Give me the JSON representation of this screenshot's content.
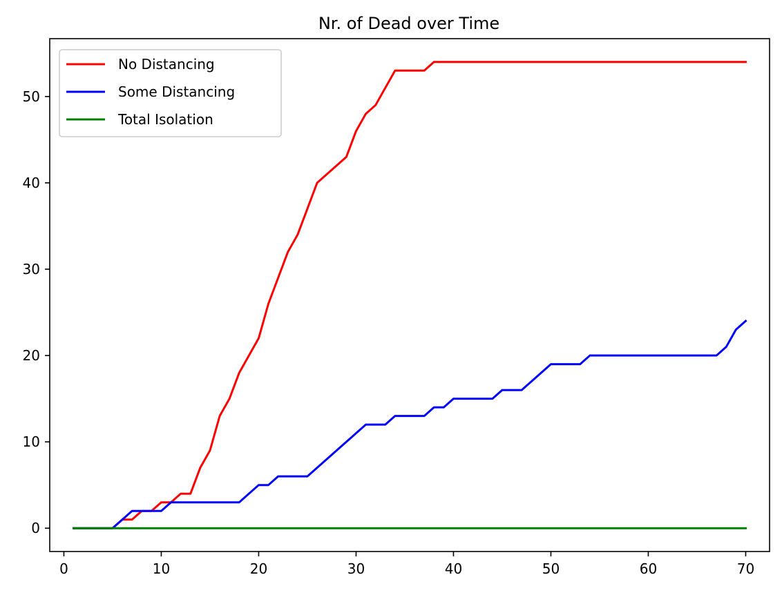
{
  "chart_data": {
    "type": "line",
    "title": "Nr. of Dead over Time",
    "xlabel": "",
    "ylabel": "",
    "xlim": [
      -1.45,
      72.45
    ],
    "ylim": [
      -2.7,
      56.7
    ],
    "xticks": [
      0,
      10,
      20,
      30,
      40,
      50,
      60,
      70
    ],
    "yticks": [
      0,
      10,
      20,
      30,
      40,
      50
    ],
    "grid": false,
    "legend_position": "top-left",
    "x": [
      1,
      2,
      3,
      4,
      5,
      6,
      7,
      8,
      9,
      10,
      11,
      12,
      13,
      14,
      15,
      16,
      17,
      18,
      19,
      20,
      21,
      22,
      23,
      24,
      25,
      26,
      27,
      28,
      29,
      30,
      31,
      32,
      33,
      34,
      35,
      36,
      37,
      38,
      39,
      40,
      41,
      42,
      43,
      44,
      45,
      46,
      47,
      48,
      49,
      50,
      51,
      52,
      53,
      54,
      55,
      56,
      57,
      58,
      59,
      60,
      61,
      62,
      63,
      64,
      65,
      66,
      67,
      68,
      69,
      70
    ],
    "series": [
      {
        "name": "No Distancing",
        "color": "#ff0000",
        "values": [
          0,
          0,
          0,
          0,
          0,
          1,
          1,
          2,
          2,
          3,
          3,
          4,
          4,
          7,
          9,
          13,
          15,
          18,
          20,
          22,
          26,
          29,
          32,
          34,
          37,
          40,
          41,
          42,
          43,
          46,
          48,
          49,
          51,
          53,
          53,
          53,
          53,
          54,
          54,
          54,
          54,
          54,
          54,
          54,
          54,
          54,
          54,
          54,
          54,
          54,
          54,
          54,
          54,
          54,
          54,
          54,
          54,
          54,
          54,
          54,
          54,
          54,
          54,
          54,
          54,
          54,
          54,
          54,
          54,
          54
        ]
      },
      {
        "name": "Some Distancing",
        "color": "#0000ff",
        "values": [
          0,
          0,
          0,
          0,
          0,
          1,
          2,
          2,
          2,
          2,
          3,
          3,
          3,
          3,
          3,
          3,
          3,
          3,
          4,
          5,
          5,
          6,
          6,
          6,
          6,
          7,
          8,
          9,
          10,
          11,
          12,
          12,
          12,
          13,
          13,
          13,
          13,
          14,
          14,
          15,
          15,
          15,
          15,
          15,
          16,
          16,
          16,
          17,
          18,
          19,
          19,
          19,
          19,
          20,
          20,
          20,
          20,
          20,
          20,
          20,
          20,
          20,
          20,
          20,
          20,
          20,
          20,
          21,
          23,
          24
        ]
      },
      {
        "name": "Total Isolation",
        "color": "#008000",
        "values": [
          0,
          0,
          0,
          0,
          0,
          0,
          0,
          0,
          0,
          0,
          0,
          0,
          0,
          0,
          0,
          0,
          0,
          0,
          0,
          0,
          0,
          0,
          0,
          0,
          0,
          0,
          0,
          0,
          0,
          0,
          0,
          0,
          0,
          0,
          0,
          0,
          0,
          0,
          0,
          0,
          0,
          0,
          0,
          0,
          0,
          0,
          0,
          0,
          0,
          0,
          0,
          0,
          0,
          0,
          0,
          0,
          0,
          0,
          0,
          0,
          0,
          0,
          0,
          0,
          0,
          0,
          0,
          0,
          0,
          0
        ]
      }
    ]
  }
}
